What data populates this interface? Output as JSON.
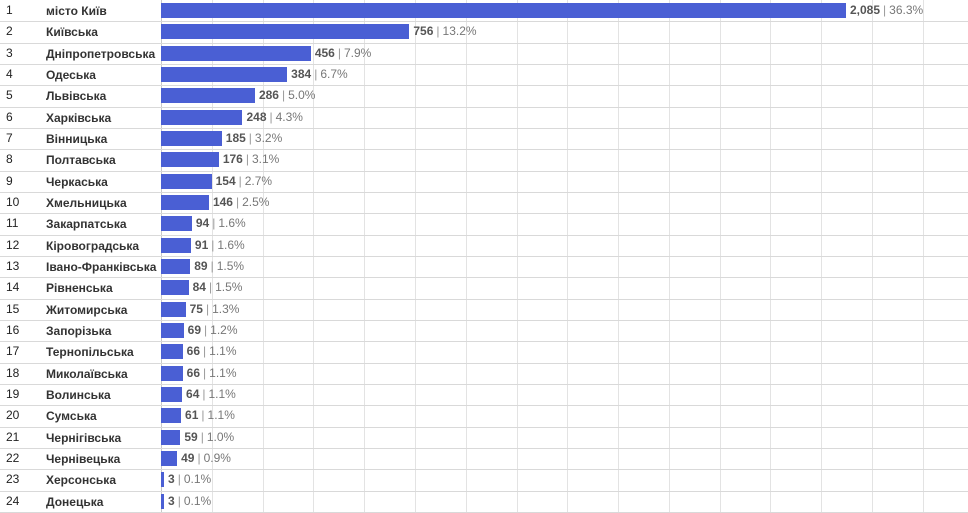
{
  "chart_data": {
    "type": "bar",
    "orientation": "horizontal",
    "rows": [
      {
        "rank": "1",
        "region": "місто Київ",
        "value": 2085,
        "label": "2,085",
        "percent": "36.3%"
      },
      {
        "rank": "2",
        "region": "Київська",
        "value": 756,
        "label": "756",
        "percent": "13.2%"
      },
      {
        "rank": "3",
        "region": "Дніпропетровська",
        "value": 456,
        "label": "456",
        "percent": "7.9%"
      },
      {
        "rank": "4",
        "region": "Одеська",
        "value": 384,
        "label": "384",
        "percent": "6.7%"
      },
      {
        "rank": "5",
        "region": "Львівська",
        "value": 286,
        "label": "286",
        "percent": "5.0%"
      },
      {
        "rank": "6",
        "region": "Харківська",
        "value": 248,
        "label": "248",
        "percent": "4.3%"
      },
      {
        "rank": "7",
        "region": "Вінницька",
        "value": 185,
        "label": "185",
        "percent": "3.2%"
      },
      {
        "rank": "8",
        "region": "Полтавська",
        "value": 176,
        "label": "176",
        "percent": "3.1%"
      },
      {
        "rank": "9",
        "region": "Черкаська",
        "value": 154,
        "label": "154",
        "percent": "2.7%"
      },
      {
        "rank": "10",
        "region": "Хмельницька",
        "value": 146,
        "label": "146",
        "percent": "2.5%"
      },
      {
        "rank": "11",
        "region": "Закарпатська",
        "value": 94,
        "label": "94",
        "percent": "1.6%"
      },
      {
        "rank": "12",
        "region": "Кіровоградська",
        "value": 91,
        "label": "91",
        "percent": "1.6%"
      },
      {
        "rank": "13",
        "region": "Івано-Франківська",
        "value": 89,
        "label": "89",
        "percent": "1.5%"
      },
      {
        "rank": "14",
        "region": "Рівненська",
        "value": 84,
        "label": "84",
        "percent": "1.5%"
      },
      {
        "rank": "15",
        "region": "Житомирська",
        "value": 75,
        "label": "75",
        "percent": "1.3%"
      },
      {
        "rank": "16",
        "region": "Запорізька",
        "value": 69,
        "label": "69",
        "percent": "1.2%"
      },
      {
        "rank": "17",
        "region": "Тернопільська",
        "value": 66,
        "label": "66",
        "percent": "1.1%"
      },
      {
        "rank": "18",
        "region": "Миколаївська",
        "value": 66,
        "label": "66",
        "percent": "1.1%"
      },
      {
        "rank": "19",
        "region": "Волинська",
        "value": 64,
        "label": "64",
        "percent": "1.1%"
      },
      {
        "rank": "20",
        "region": "Сумська",
        "value": 61,
        "label": "61",
        "percent": "1.1%"
      },
      {
        "rank": "21",
        "region": "Чернігівська",
        "value": 59,
        "label": "59",
        "percent": "1.0%"
      },
      {
        "rank": "22",
        "region": "Чернівецька",
        "value": 49,
        "label": "49",
        "percent": "0.9%"
      },
      {
        "rank": "23",
        "region": "Херсонська",
        "value": 3,
        "label": "3",
        "percent": "0.1%"
      },
      {
        "rank": "24",
        "region": "Донецька",
        "value": 3,
        "label": "3",
        "percent": "0.1%"
      }
    ],
    "bar_color": "#4a5fd4",
    "grid": true
  }
}
